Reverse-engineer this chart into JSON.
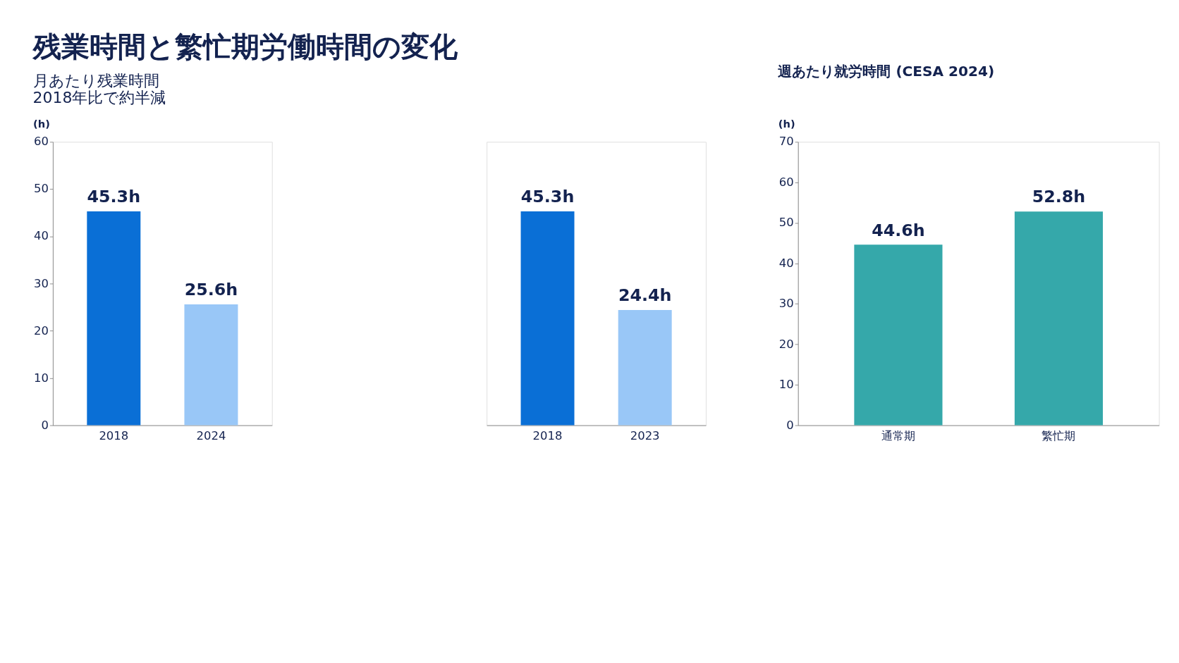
{
  "chart_data": [
    {
      "type": "bar",
      "title": "残業時間と繁忙期労働時間の変化",
      "subtitle": "月あたり残業時間",
      "annotations": [
        "2018年比で約半減"
      ],
      "ylabel": "(h)",
      "categories": [
        "2018",
        "2024"
      ],
      "values": [
        45.3,
        25.6
      ],
      "colors": [
        "#0a6fd6",
        "#99c7f7"
      ],
      "value_labels": [
        "45.3h",
        "25.6h"
      ],
      "ylim": [
        0,
        60
      ],
      "yticks": [
        0,
        10,
        20,
        30,
        40,
        50,
        60
      ],
      "grid": false
    },
    {
      "type": "bar",
      "categories": [
        "2018",
        "2023"
      ],
      "values": [
        45.3,
        24.4
      ],
      "colors": [
        "#0a6fd6",
        "#99c7f7"
      ],
      "value_labels": [
        "45.3h",
        "24.4h"
      ],
      "ylim": [
        0,
        60
      ],
      "tick_labels": "x",
      "grid": false
    },
    {
      "type": "bar",
      "subtitle": "週あたり就労時間 (CESA 2024)",
      "ylabel": "(h)",
      "categories": [
        "通常期",
        "繁忙期"
      ],
      "values": [
        44.6,
        52.8
      ],
      "colors": [
        "#35a8aa",
        "#35a8aa"
      ],
      "value_labels": [
        "44.6h",
        "52.8h"
      ],
      "ylim": [
        0,
        70
      ],
      "yticks": [
        0,
        10,
        20,
        30,
        40,
        50,
        60,
        70
      ],
      "grid": false
    }
  ]
}
